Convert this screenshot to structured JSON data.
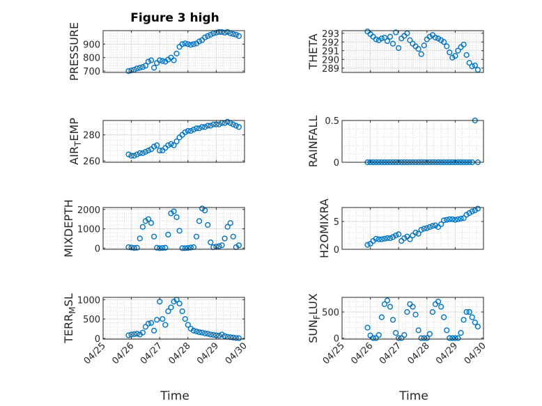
{
  "figure": {
    "title": "Figure 3 high",
    "marker_color": "#0072BD"
  },
  "x_axis": {
    "label": "Time",
    "range": [
      "04/25",
      "04/30"
    ],
    "ticks": [
      "04/25",
      "04/26",
      "04/27",
      "04/28",
      "04/29",
      "04/30"
    ]
  },
  "chart_data": [
    {
      "type": "scatter",
      "ylabel": "PRESSURE",
      "title": "Figure 3 high",
      "ylim": [
        690,
        1000
      ],
      "yticks": [
        700,
        800,
        900
      ],
      "grid": true,
      "x": [
        0.9,
        1.0,
        1.1,
        1.2,
        1.3,
        1.4,
        1.5,
        1.6,
        1.7,
        1.8,
        1.9,
        2.0,
        2.1,
        2.2,
        2.3,
        2.4,
        2.5,
        2.6,
        2.7,
        2.8,
        2.9,
        3.0,
        3.1,
        3.2,
        3.3,
        3.4,
        3.5,
        3.6,
        3.7,
        3.8,
        3.9,
        4.0,
        4.1,
        4.2,
        4.3,
        4.4,
        4.5,
        4.6,
        4.7,
        4.8
      ],
      "y": [
        700,
        705,
        710,
        720,
        725,
        730,
        740,
        770,
        780,
        725,
        760,
        780,
        775,
        770,
        785,
        800,
        780,
        830,
        880,
        900,
        905,
        900,
        895,
        900,
        905,
        920,
        930,
        950,
        960,
        970,
        980,
        985,
        990,
        990,
        985,
        990,
        980,
        975,
        970,
        960
      ]
    },
    {
      "type": "scatter",
      "ylabel": "THETA",
      "ylim": [
        288.5,
        293.3
      ],
      "yticks": [
        289,
        290,
        291,
        292,
        293
      ],
      "grid": true,
      "x": [
        0.9,
        1.0,
        1.1,
        1.2,
        1.3,
        1.4,
        1.5,
        1.6,
        1.7,
        1.8,
        1.9,
        2.0,
        2.1,
        2.2,
        2.3,
        2.4,
        2.5,
        2.6,
        2.7,
        2.8,
        2.9,
        3.0,
        3.1,
        3.2,
        3.3,
        3.4,
        3.5,
        3.6,
        3.7,
        3.8,
        3.9,
        4.0,
        4.1,
        4.2,
        4.3,
        4.4,
        4.5,
        4.6,
        4.7,
        4.8
      ],
      "y": [
        293.2,
        292.9,
        292.6,
        292.3,
        292.2,
        292.4,
        292.5,
        292.1,
        292.6,
        291.8,
        293.1,
        291.3,
        292.4,
        292.7,
        293.0,
        292.2,
        291.8,
        291.5,
        291.2,
        290.6,
        291.6,
        292.3,
        292.6,
        292.8,
        292.5,
        292.4,
        292.2,
        292.0,
        291.5,
        290.8,
        290.2,
        290.4,
        291.0,
        291.4,
        291.7,
        290.5,
        289.6,
        289.2,
        289.3,
        288.8
      ]
    },
    {
      "type": "scatter",
      "ylabel": "AIR_TEMP",
      "ylim": [
        259,
        291
      ],
      "yticks": [
        260,
        280
      ],
      "grid": true,
      "x": [
        0.9,
        1.0,
        1.1,
        1.2,
        1.3,
        1.4,
        1.5,
        1.6,
        1.7,
        1.8,
        1.9,
        2.0,
        2.1,
        2.2,
        2.3,
        2.4,
        2.5,
        2.6,
        2.7,
        2.8,
        2.9,
        3.0,
        3.1,
        3.2,
        3.3,
        3.4,
        3.5,
        3.6,
        3.7,
        3.8,
        3.9,
        4.0,
        4.1,
        4.2,
        4.3,
        4.4,
        4.5,
        4.6,
        4.7,
        4.8
      ],
      "y": [
        265,
        264,
        264,
        265,
        266,
        266,
        267,
        268,
        269,
        271,
        272,
        268,
        268,
        270,
        272,
        273,
        272,
        275,
        278,
        280,
        282,
        283,
        283,
        284,
        285,
        285,
        286,
        286,
        287,
        287,
        288,
        288,
        288,
        289,
        289,
        290,
        289,
        288,
        287,
        286
      ]
    },
    {
      "type": "scatter",
      "ylabel": "RAINFALL",
      "ylim": [
        0,
        0.5
      ],
      "yticks": [
        0,
        0.5
      ],
      "grid": true,
      "x": [
        0.9,
        1.0,
        1.1,
        1.2,
        1.3,
        1.4,
        1.5,
        1.6,
        1.7,
        1.8,
        1.9,
        2.0,
        2.1,
        2.2,
        2.3,
        2.4,
        2.5,
        2.6,
        2.7,
        2.8,
        2.9,
        3.0,
        3.1,
        3.2,
        3.3,
        3.4,
        3.5,
        3.6,
        3.7,
        3.8,
        3.9,
        4.0,
        4.1,
        4.2,
        4.3,
        4.4,
        4.5,
        4.6,
        4.7,
        4.8
      ],
      "y": [
        0,
        0,
        0,
        0,
        0,
        0,
        0,
        0,
        0,
        0,
        0,
        0,
        0,
        0,
        0,
        0,
        0,
        0,
        0,
        0,
        0,
        0,
        0,
        0,
        0,
        0,
        0,
        0,
        0,
        0,
        0,
        0,
        0,
        0,
        0,
        0,
        0,
        0,
        0.5,
        0
      ]
    },
    {
      "type": "scatter",
      "ylabel": "MIXDEPTH",
      "ylim": [
        -60,
        2100
      ],
      "yticks": [
        0,
        1000,
        2000
      ],
      "grid": true,
      "x": [
        0.9,
        1.0,
        1.1,
        1.2,
        1.3,
        1.4,
        1.5,
        1.6,
        1.7,
        1.8,
        1.9,
        2.0,
        2.1,
        2.2,
        2.3,
        2.4,
        2.5,
        2.6,
        2.7,
        2.8,
        2.9,
        3.0,
        3.1,
        3.2,
        3.3,
        3.4,
        3.5,
        3.6,
        3.7,
        3.8,
        3.9,
        4.0,
        4.1,
        4.2,
        4.3,
        4.4,
        4.5,
        4.6,
        4.7,
        4.8
      ],
      "y": [
        50,
        30,
        10,
        20,
        500,
        1100,
        1400,
        1500,
        1300,
        600,
        20,
        0,
        10,
        20,
        700,
        1800,
        1900,
        1600,
        900,
        0,
        0,
        10,
        30,
        50,
        600,
        1400,
        2050,
        1950,
        1200,
        300,
        50,
        80,
        100,
        150,
        500,
        1100,
        1300,
        600,
        50,
        150
      ]
    },
    {
      "type": "scatter",
      "ylabel": "H2OMIXRA",
      "ylim": [
        0,
        7.5
      ],
      "yticks": [
        0,
        5
      ],
      "grid": true,
      "x": [
        0.9,
        1.0,
        1.1,
        1.2,
        1.3,
        1.4,
        1.5,
        1.6,
        1.7,
        1.8,
        1.9,
        2.0,
        2.1,
        2.2,
        2.3,
        2.4,
        2.5,
        2.6,
        2.7,
        2.8,
        2.9,
        3.0,
        3.1,
        3.2,
        3.3,
        3.4,
        3.5,
        3.6,
        3.7,
        3.8,
        3.9,
        4.0,
        4.1,
        4.2,
        4.3,
        4.4,
        4.5,
        4.6,
        4.7,
        4.8
      ],
      "y": [
        0.8,
        1.0,
        1.5,
        1.9,
        1.8,
        1.8,
        1.9,
        2.0,
        2.0,
        2.2,
        2.5,
        2.7,
        1.5,
        2.0,
        2.3,
        1.8,
        2.5,
        3.0,
        2.8,
        3.5,
        3.7,
        3.8,
        4.0,
        4.2,
        4.3,
        4.0,
        4.5,
        5.2,
        5.3,
        5.4,
        5.4,
        5.3,
        5.4,
        5.5,
        5.6,
        6.2,
        6.5,
        6.8,
        7.0,
        7.3
      ]
    },
    {
      "type": "scatter",
      "ylabel": "TERR_MSL",
      "ylim": [
        -20,
        1060
      ],
      "yticks": [
        0,
        500,
        1000
      ],
      "grid": true,
      "x": [
        0.9,
        1.0,
        1.1,
        1.2,
        1.3,
        1.4,
        1.5,
        1.6,
        1.7,
        1.8,
        1.9,
        2.0,
        2.1,
        2.2,
        2.3,
        2.4,
        2.5,
        2.6,
        2.7,
        2.8,
        2.9,
        3.0,
        3.1,
        3.2,
        3.3,
        3.4,
        3.5,
        3.6,
        3.7,
        3.8,
        3.9,
        4.0,
        4.1,
        4.2,
        4.3,
        4.4,
        4.5,
        4.6,
        4.7,
        4.8
      ],
      "y": [
        80,
        100,
        110,
        120,
        100,
        150,
        300,
        380,
        400,
        200,
        480,
        950,
        500,
        350,
        700,
        800,
        950,
        1000,
        900,
        700,
        500,
        350,
        250,
        200,
        180,
        160,
        150,
        130,
        120,
        100,
        90,
        80,
        70,
        100,
        60,
        40,
        30,
        20,
        10,
        5
      ]
    },
    {
      "type": "scatter",
      "ylabel": "SUN_FLUX",
      "ylim": [
        -20,
        780
      ],
      "yticks": [
        0,
        500
      ],
      "grid": true,
      "x": [
        0.9,
        1.0,
        1.1,
        1.2,
        1.3,
        1.4,
        1.5,
        1.6,
        1.7,
        1.8,
        1.9,
        2.0,
        2.1,
        2.2,
        2.3,
        2.4,
        2.5,
        2.6,
        2.7,
        2.8,
        2.9,
        3.0,
        3.1,
        3.2,
        3.3,
        3.4,
        3.5,
        3.6,
        3.7,
        3.8,
        3.9,
        4.0,
        4.1,
        4.2,
        4.3,
        4.4,
        4.5,
        4.6,
        4.7,
        4.8
      ],
      "y": [
        200,
        50,
        0,
        0,
        60,
        400,
        650,
        720,
        600,
        350,
        100,
        0,
        0,
        60,
        500,
        650,
        600,
        450,
        150,
        0,
        0,
        0,
        80,
        500,
        650,
        700,
        600,
        400,
        150,
        0,
        0,
        0,
        0,
        100,
        350,
        500,
        500,
        400,
        300,
        220
      ]
    }
  ]
}
